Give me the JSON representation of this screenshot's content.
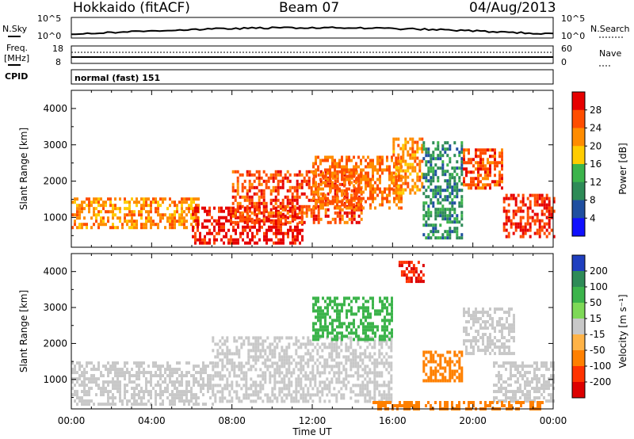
{
  "header": {
    "station": "Hokkaido (fitACF)",
    "beam": "Beam 07",
    "date": "04/Aug/2013"
  },
  "status": {
    "nsky_label": "N.Sky",
    "nsearch_label": "N.Search",
    "nsky_ticks": [
      "10^5",
      "10^0"
    ],
    "nsearch_ticks": [
      "10^5",
      "10^0"
    ],
    "freq_label_line1": "Freq.",
    "freq_label_line2": "[MHz]",
    "freq_ticks": [
      "18",
      "8"
    ],
    "nave_label": "Nave",
    "nave_ticks": [
      "60",
      "0"
    ],
    "cpid_label": "CPID",
    "cpid_text": "normal (fast) 151"
  },
  "time_axis": {
    "label": "Time UT",
    "ticks": [
      "00:00",
      "04:00",
      "08:00",
      "12:00",
      "16:00",
      "20:00",
      "00:00"
    ]
  },
  "chart_data": [
    {
      "type": "heatmap",
      "panel": "power",
      "ylabel": "Slant Range [km]",
      "ylim": [
        180,
        4500
      ],
      "y_ticks": [
        1000,
        2000,
        3000,
        4000
      ],
      "x_ticks": [
        "00:00",
        "04:00",
        "08:00",
        "12:00",
        "16:00",
        "20:00",
        "00:00"
      ],
      "x_range_hours": [
        0,
        24
      ],
      "colorbar": {
        "label": "Power [dB]",
        "ticks": [
          "28",
          "24",
          "20",
          "16",
          "12",
          "8",
          "4"
        ],
        "colors": [
          "#e60000",
          "#ff4d00",
          "#ff8c00",
          "#ffcc00",
          "#3cb44b",
          "#2e8b57",
          "#1f4fa0",
          "#1010ff"
        ]
      },
      "echo_regions": [
        {
          "t_start": 0.0,
          "t_end": 6.3,
          "r_min": 700,
          "r_max": 1550,
          "level": 20
        },
        {
          "t_start": 6.0,
          "t_end": 11.5,
          "r_min": 300,
          "r_max": 1300,
          "level": 28
        },
        {
          "t_start": 8.0,
          "t_end": 14.5,
          "r_min": 900,
          "r_max": 2300,
          "level": 24
        },
        {
          "t_start": 12.0,
          "t_end": 16.5,
          "r_min": 1300,
          "r_max": 2700,
          "level": 22
        },
        {
          "t_start": 16.0,
          "t_end": 17.5,
          "r_min": 1700,
          "r_max": 3200,
          "level": 20
        },
        {
          "t_start": 17.5,
          "t_end": 19.5,
          "r_min": 400,
          "r_max": 3100,
          "level": 8
        },
        {
          "t_start": 19.5,
          "t_end": 21.5,
          "r_min": 1800,
          "r_max": 2900,
          "level": 24
        },
        {
          "t_start": 21.5,
          "t_end": 24.0,
          "r_min": 450,
          "r_max": 1650,
          "level": 26
        }
      ]
    },
    {
      "type": "heatmap",
      "panel": "velocity",
      "ylabel": "Slant Range [km]",
      "ylim": [
        180,
        4500
      ],
      "y_ticks": [
        1000,
        2000,
        3000,
        4000
      ],
      "x_ticks": [
        "00:00",
        "04:00",
        "08:00",
        "12:00",
        "16:00",
        "20:00",
        "00:00"
      ],
      "x_range_hours": [
        0,
        24
      ],
      "colorbar": {
        "label": "Velocity [m s⁻¹]",
        "ticks": [
          "200",
          "100",
          "50",
          "15",
          "-15",
          "-50",
          "-100",
          "-200"
        ],
        "colors": [
          "#1f3fbf",
          "#2e8b57",
          "#3cb44b",
          "#7ed957",
          "#c8c8c8",
          "#ffb347",
          "#ff8000",
          "#ff3300",
          "#dd0000"
        ]
      },
      "echo_regions": [
        {
          "t_start": 0.0,
          "t_end": 7.0,
          "r_min": 300,
          "r_max": 1500,
          "level": 0
        },
        {
          "t_start": 7.0,
          "t_end": 16.0,
          "r_min": 400,
          "r_max": 2200,
          "level": 0
        },
        {
          "t_start": 12.0,
          "t_end": 16.0,
          "r_min": 2100,
          "r_max": 3300,
          "level": 60
        },
        {
          "t_start": 16.3,
          "t_end": 17.5,
          "r_min": 3700,
          "r_max": 4300,
          "level": -200
        },
        {
          "t_start": 17.5,
          "t_end": 19.5,
          "r_min": 1000,
          "r_max": 1800,
          "level": -80
        },
        {
          "t_start": 19.5,
          "t_end": 22.0,
          "r_min": 1700,
          "r_max": 3000,
          "level": 0
        },
        {
          "t_start": 21.0,
          "t_end": 24.0,
          "r_min": 400,
          "r_max": 1500,
          "level": 0
        },
        {
          "t_start": 15.0,
          "t_end": 23.5,
          "r_min": 200,
          "r_max": 400,
          "level": -60
        }
      ]
    }
  ]
}
